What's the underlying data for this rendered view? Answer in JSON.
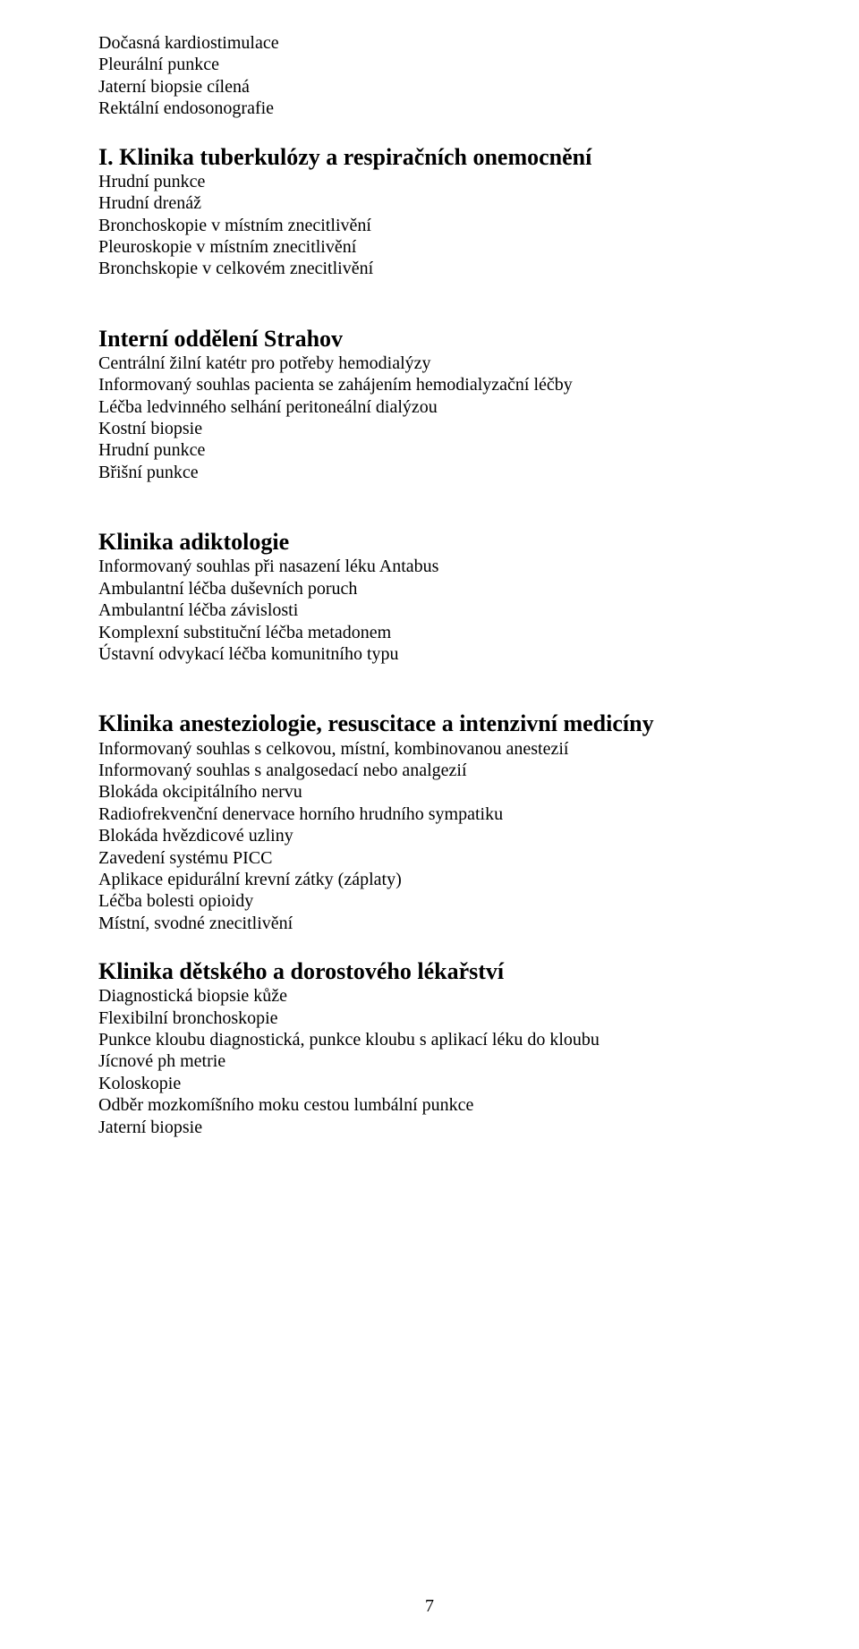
{
  "top_list": [
    "Dočasná kardiostimulace",
    "Pleurální punkce",
    "Jaterní biopsie cílená",
    "Rektální endosonografie"
  ],
  "sections": [
    {
      "heading": "I. Klinika tuberkulózy a respiračních onemocnění",
      "items": [
        "Hrudní punkce",
        "Hrudní drenáž",
        "Bronchoskopie v místním znecitlivění",
        "Pleuroskopie v místním znecitlivění",
        "Bronchskopie v celkovém znecitlivění"
      ]
    },
    {
      "heading": "Interní oddělení Strahov",
      "items": [
        "Centrální žilní katétr pro potřeby hemodialýzy",
        "Informovaný souhlas pacienta se zahájením hemodialyzační léčby",
        "Léčba ledvinného selhání peritoneální dialýzou",
        "Kostní biopsie",
        "Hrudní punkce",
        "Břišní punkce"
      ]
    },
    {
      "heading": "Klinika adiktologie",
      "items": [
        "Informovaný souhlas při nasazení léku Antabus",
        "Ambulantní léčba duševních poruch",
        "Ambulantní léčba závislosti",
        "Komplexní substituční léčba metadonem",
        "Ústavní odvykací léčba komunitního typu"
      ]
    },
    {
      "heading": "Klinika anesteziologie, resuscitace a intenzivní medicíny",
      "items": [
        "Informovaný souhlas s celkovou, místní, kombinovanou anestezií",
        "Informovaný souhlas s analgosedací nebo analgezií",
        "Blokáda okcipitálního nervu",
        "Radiofrekvenční denervace horního hrudního sympatiku",
        "Blokáda hvězdicové uzliny",
        "Zavedení systému PICC",
        "Aplikace epidurální krevní zátky (záplaty)",
        "Léčba bolesti opioidy",
        "Místní, svodné znecitlivění"
      ]
    },
    {
      "heading": "Klinika dětského a dorostového lékařství",
      "items": [
        "Diagnostická biopsie kůže",
        "Flexibilní bronchoskopie",
        "Punkce kloubu diagnostická, punkce kloubu s aplikací léku do kloubu",
        "Jícnové ph metrie",
        "Koloskopie",
        "Odběr mozkomíšního moku cestou lumbální punkce",
        "Jaterní biopsie"
      ]
    }
  ],
  "page_number": "7",
  "gaps": {
    "before_first_section": "md",
    "between_0_1": "lg",
    "between_1_2": "lg",
    "between_2_3": "lg",
    "between_3_4": "md"
  }
}
